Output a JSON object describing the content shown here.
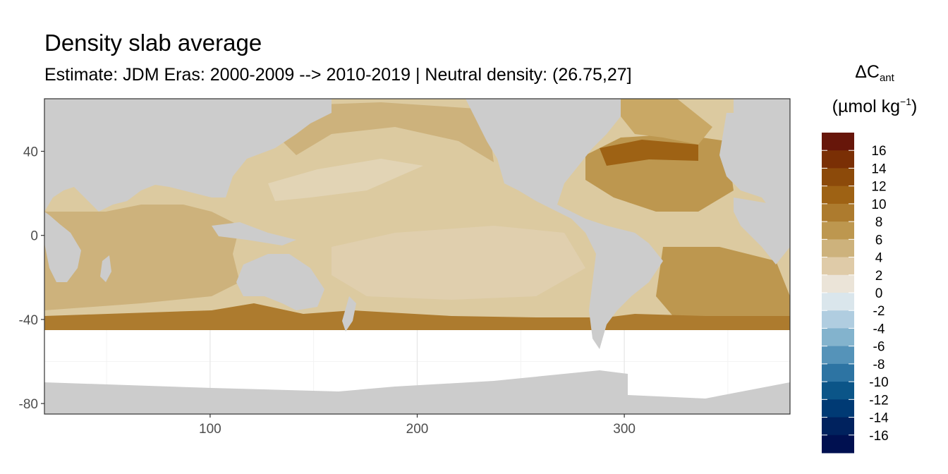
{
  "chart_data": {
    "type": "heatmap",
    "title": "Density slab average",
    "subtitle": "Estimate: JDM Eras: 2000-2009 --> 2010-2019 | Neutral density: (26.75,27]",
    "x_ticks": [
      100,
      200,
      300
    ],
    "y_ticks": [
      40,
      0,
      -40,
      -80
    ],
    "xlim": [
      20,
      380
    ],
    "ylim": [
      -85,
      65
    ],
    "grid": true,
    "legend": {
      "title_main": "ΔC",
      "title_sub": "ant",
      "title_unit": "(µmol kg",
      "title_exp": "−1",
      "title_close": ")",
      "placement": "right",
      "labels": [
        "16",
        "14",
        "12",
        "10",
        "8",
        "6",
        "4",
        "2",
        "0",
        "-2",
        "-4",
        "-6",
        "-8",
        "-10",
        "-12",
        "-14",
        "-16"
      ],
      "colors": [
        "#67160a",
        "#7a2f05",
        "#8c4a0a",
        "#9e6214",
        "#ad7b2e",
        "#bd974f",
        "#cdb27c",
        "#dfcba8",
        "#ebe4d8",
        "#dae6ec",
        "#b0cde0",
        "#83b3cd",
        "#5593b9",
        "#2d74a3",
        "#0b5588",
        "#003a74",
        "#00225e",
        "#001050"
      ]
    }
  }
}
